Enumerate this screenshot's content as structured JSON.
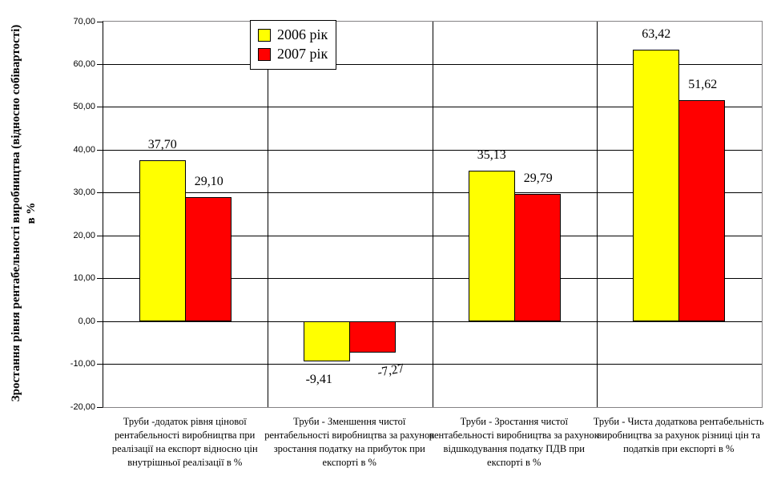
{
  "chart_data": {
    "type": "bar",
    "title": "",
    "ylabel_line1": "Зростання рівня рентабельності виробництва (відносно собівартості)",
    "ylabel_line2": "в %",
    "ylim": [
      -20,
      70
    ],
    "ytick_step": 10,
    "ytick_decimals": 2,
    "decimal_separator": ",",
    "grid": true,
    "legend_position": "top-inside-left-of-center",
    "legend_entries": [
      "2006 рік",
      "2007 рік"
    ],
    "categories": [
      "Труби -додаток рівня цінової рентабельності виробництва при реалізації на експорт відносно цін внутрішньої реалізації в %",
      "Труби - Зменшення чистої рентабельності виробництва за рахунок зростання податку на прибуток при експорті в %",
      "Труби - Зростання чистої рентабельності виробництва за рахунок відшкодування податку ПДВ при експорті в %",
      "Труби - Чиста додаткова рентабельність виробництва за рахунок різниці цін та податків при експорті в %"
    ],
    "series": [
      {
        "name": "2006 рік",
        "color": "#FFFF00",
        "values": [
          37.7,
          -9.41,
          35.13,
          63.42
        ],
        "label_dx": [
          0,
          -10,
          0,
          0
        ],
        "label_angles": [
          0,
          0,
          0,
          0
        ]
      },
      {
        "name": "2007 рік",
        "color": "#FF0000",
        "values": [
          29.1,
          -7.27,
          29.79,
          51.62
        ],
        "label_dx": [
          0,
          22,
          0,
          0
        ],
        "label_angles": [
          0,
          -10,
          0,
          0
        ]
      }
    ],
    "colors": {
      "bar_border": "#000000",
      "gridline": "#000000",
      "frame": "#848284",
      "axis": "#000000",
      "background": "#FFFFFF"
    }
  }
}
